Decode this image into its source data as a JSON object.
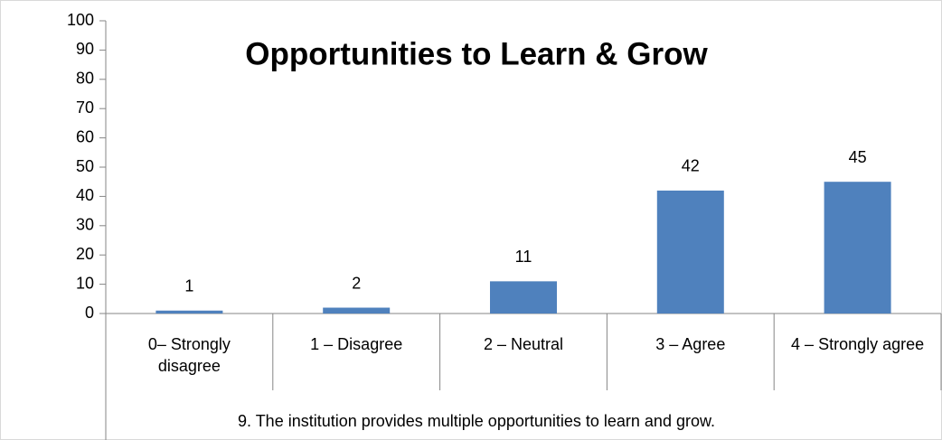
{
  "chart_data": {
    "type": "bar",
    "title": "Opportunities to Learn & Grow",
    "x_label": "9. The institution provides multiple opportunities to learn and grow.",
    "categories": [
      "0– Strongly disagree",
      "1 – Disagree",
      "2 – Neutral",
      "3 – Agree",
      "4 – Strongly agree"
    ],
    "values": [
      1,
      2,
      11,
      42,
      45
    ],
    "color": "#4f81bd",
    "ylim": [
      0,
      100
    ],
    "yticks": [
      0,
      10,
      20,
      30,
      40,
      50,
      60,
      70,
      80,
      90,
      100
    ],
    "grid": false
  }
}
